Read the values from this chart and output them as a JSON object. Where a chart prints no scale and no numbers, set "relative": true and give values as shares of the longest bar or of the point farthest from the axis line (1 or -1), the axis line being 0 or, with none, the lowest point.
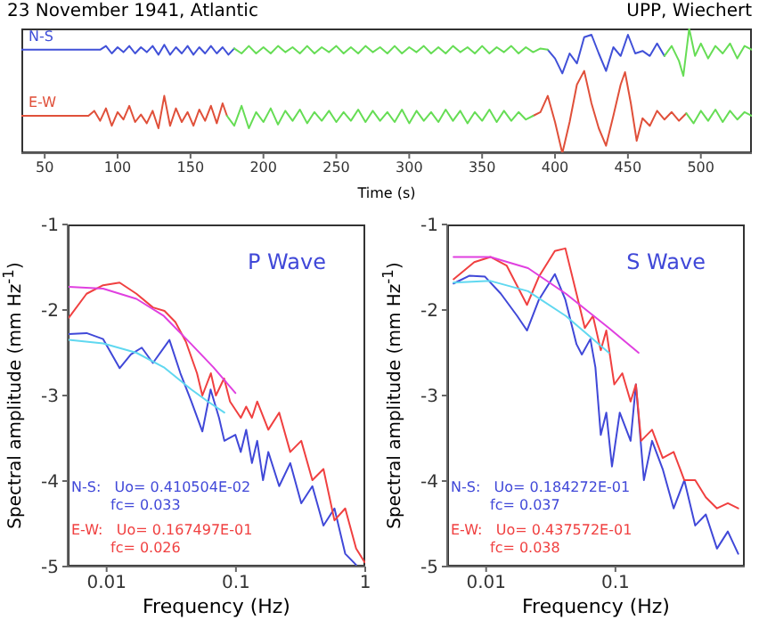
{
  "chart_data": [
    {
      "type": "line",
      "title": "23 November 1941, Atlantic",
      "subtitle": "UPP, Wiechert",
      "xlabel": "Time (s)",
      "relative": true,
      "xlim": [
        34,
        535
      ],
      "xticks": [
        50,
        100,
        150,
        200,
        250,
        300,
        350,
        400,
        450,
        500
      ],
      "legend": false,
      "series": [
        {
          "name": "N-S",
          "color": "#4050d8",
          "x": [
            34,
            88,
            92,
            96,
            100,
            104,
            108,
            112,
            116,
            120,
            124,
            128,
            132,
            136,
            140,
            144,
            148,
            152,
            156,
            160,
            164,
            168,
            172,
            176,
            180,
            300,
            395,
            400,
            405,
            410,
            415,
            420,
            425,
            430,
            435,
            440,
            445,
            450,
            455,
            460,
            465,
            470,
            475
          ],
          "values": [
            0.83,
            0.83,
            0.86,
            0.8,
            0.85,
            0.81,
            0.86,
            0.8,
            0.85,
            0.81,
            0.86,
            0.79,
            0.87,
            0.79,
            0.85,
            0.8,
            0.86,
            0.79,
            0.85,
            0.8,
            0.86,
            0.8,
            0.85,
            0.79,
            0.84,
            null,
            0.83,
            0.76,
            0.64,
            0.8,
            0.72,
            0.93,
            0.95,
            0.8,
            0.66,
            0.85,
            0.78,
            0.95,
            0.8,
            0.82,
            0.78,
            0.88,
            0.78
          ]
        },
        {
          "color": "#66dd55",
          "x": [
            180,
            185,
            190,
            195,
            200,
            205,
            210,
            215,
            220,
            225,
            230,
            235,
            240,
            245,
            250,
            255,
            260,
            265,
            270,
            275,
            280,
            285,
            290,
            295,
            300,
            305,
            310,
            315,
            320,
            325,
            330,
            335,
            340,
            345,
            350,
            355,
            360,
            365,
            370,
            375,
            380,
            385,
            390,
            395
          ],
          "values": [
            0.84,
            0.8,
            0.86,
            0.8,
            0.85,
            0.8,
            0.86,
            0.81,
            0.85,
            0.8,
            0.86,
            0.8,
            0.85,
            0.81,
            0.86,
            0.8,
            0.85,
            0.8,
            0.86,
            0.81,
            0.85,
            0.8,
            0.86,
            0.8,
            0.85,
            0.81,
            0.86,
            0.8,
            0.85,
            0.8,
            0.86,
            0.81,
            0.85,
            0.8,
            0.86,
            0.8,
            0.85,
            0.81,
            0.86,
            0.8,
            0.85,
            0.81,
            0.84,
            0.83
          ]
        },
        {
          "color": "#66dd55",
          "x": [
            475,
            480,
            485,
            488,
            492,
            496,
            500,
            505,
            510,
            515,
            520,
            525,
            530,
            535
          ],
          "values": [
            0.78,
            0.86,
            0.74,
            0.62,
            1.0,
            0.78,
            0.88,
            0.76,
            0.86,
            0.8,
            0.88,
            0.76,
            0.86,
            0.83
          ]
        },
        {
          "name": "E-W",
          "color": "#e0503a",
          "x": [
            34,
            80,
            84,
            88,
            92,
            96,
            100,
            104,
            108,
            112,
            116,
            120,
            124,
            128,
            132,
            136,
            140,
            144,
            148,
            152,
            156,
            160,
            164,
            168,
            172,
            175,
            300,
            385,
            390,
            395,
            400,
            405,
            410,
            415,
            420,
            425,
            430,
            435,
            440,
            445,
            448,
            452,
            456,
            460,
            465,
            470,
            475,
            480,
            485,
            490
          ],
          "values": [
            0.3,
            0.3,
            0.34,
            0.26,
            0.36,
            0.22,
            0.33,
            0.27,
            0.38,
            0.25,
            0.31,
            0.24,
            0.34,
            0.2,
            0.46,
            0.22,
            0.36,
            0.25,
            0.33,
            0.22,
            0.35,
            0.26,
            0.38,
            0.24,
            0.4,
            0.3,
            null,
            0.3,
            0.33,
            0.46,
            0.25,
            0.0,
            0.25,
            0.55,
            0.66,
            0.4,
            0.2,
            0.06,
            0.3,
            0.55,
            0.65,
            0.4,
            0.1,
            0.28,
            0.22,
            0.34,
            0.27,
            0.33,
            0.26,
            0.32
          ]
        },
        {
          "color": "#66dd55",
          "x": [
            175,
            180,
            185,
            190,
            195,
            200,
            205,
            210,
            215,
            220,
            225,
            230,
            235,
            240,
            245,
            250,
            255,
            260,
            265,
            270,
            275,
            280,
            285,
            290,
            295,
            300,
            305,
            310,
            315,
            320,
            325,
            330,
            335,
            340,
            345,
            350,
            355,
            360,
            365,
            370,
            375,
            380,
            385
          ],
          "values": [
            0.3,
            0.22,
            0.38,
            0.2,
            0.33,
            0.25,
            0.36,
            0.23,
            0.34,
            0.26,
            0.35,
            0.24,
            0.33,
            0.26,
            0.34,
            0.25,
            0.33,
            0.26,
            0.35,
            0.25,
            0.34,
            0.26,
            0.33,
            0.25,
            0.35,
            0.24,
            0.34,
            0.26,
            0.33,
            0.25,
            0.35,
            0.26,
            0.34,
            0.24,
            0.33,
            0.26,
            0.35,
            0.25,
            0.34,
            0.26,
            0.33,
            0.27,
            0.3
          ]
        },
        {
          "color": "#66dd55",
          "x": [
            490,
            495,
            500,
            505,
            510,
            515,
            520,
            525,
            530,
            535
          ],
          "values": [
            0.32,
            0.24,
            0.34,
            0.26,
            0.35,
            0.25,
            0.34,
            0.27,
            0.33,
            0.3
          ]
        }
      ]
    },
    {
      "type": "line",
      "title": "P Wave",
      "xlabel": "Frequency (Hz)",
      "ylabel": "Spectral amplitude (mm Hz$^{-1}$)",
      "log": "x",
      "xlim": [
        0.005,
        1
      ],
      "xticks": [
        0.01,
        0.1,
        1
      ],
      "ylim": [
        -5,
        -1
      ],
      "yticks": [
        -5,
        -4,
        -3,
        -2,
        -1
      ],
      "legend": false,
      "annotations": [
        "N-S:   Uo= 0.410504E-02",
        "fc= 0.033",
        "E-W:   Uo= 0.167497E-01",
        "fc= 0.026"
      ],
      "series": [
        {
          "color": "#4048d8",
          "x": [
            0.0051,
            0.007,
            0.0094,
            0.0126,
            0.0154,
            0.0187,
            0.0228,
            0.0306,
            0.0372,
            0.0452,
            0.055,
            0.0637,
            0.074,
            0.0814,
            0.099,
            0.109,
            0.12,
            0.133,
            0.146,
            0.162,
            0.178,
            0.216,
            0.263,
            0.32,
            0.39,
            0.475,
            0.578,
            0.7,
            0.85
          ],
          "values": [
            -2.28,
            -2.27,
            -2.34,
            -2.68,
            -2.52,
            -2.44,
            -2.62,
            -2.35,
            -2.74,
            -3.07,
            -3.42,
            -2.93,
            -3.26,
            -3.53,
            -3.46,
            -3.66,
            -3.4,
            -3.79,
            -3.53,
            -3.99,
            -3.66,
            -4.06,
            -3.79,
            -4.26,
            -4.06,
            -4.52,
            -4.32,
            -4.85,
            -4.98
          ]
        },
        {
          "color": "#f04040",
          "x": [
            0.0051,
            0.007,
            0.0094,
            0.0126,
            0.017,
            0.0228,
            0.028,
            0.034,
            0.041,
            0.05,
            0.055,
            0.064,
            0.07,
            0.081,
            0.09,
            0.109,
            0.12,
            0.133,
            0.146,
            0.178,
            0.216,
            0.263,
            0.32,
            0.39,
            0.475,
            0.578,
            0.7,
            0.85,
            0.99
          ],
          "values": [
            -2.09,
            -1.81,
            -1.71,
            -1.68,
            -1.81,
            -1.97,
            -2.01,
            -2.14,
            -2.37,
            -2.74,
            -3.0,
            -2.74,
            -3.0,
            -2.8,
            -3.07,
            -3.26,
            -3.13,
            -3.26,
            -3.07,
            -3.4,
            -3.2,
            -3.66,
            -3.53,
            -3.99,
            -3.86,
            -4.46,
            -4.32,
            -4.79,
            -4.95
          ]
        },
        {
          "color": "#e040e0",
          "x": [
            0.0051,
            0.0094,
            0.017,
            0.0277,
            0.0452,
            0.067,
            0.099
          ],
          "values": [
            -1.73,
            -1.75,
            -1.87,
            -2.07,
            -2.4,
            -2.67,
            -2.97
          ]
        },
        {
          "color": "#60d8f0",
          "x": [
            0.0051,
            0.0094,
            0.017,
            0.0277,
            0.0452,
            0.0607,
            0.0814
          ],
          "values": [
            -2.35,
            -2.39,
            -2.5,
            -2.67,
            -2.93,
            -3.07,
            -3.2
          ]
        }
      ]
    },
    {
      "type": "line",
      "title": "S Wave",
      "xlabel": "Frequency (Hz)",
      "ylabel": "Spectral amplitude (mm Hz$^{-1}$)",
      "log": "x",
      "xlim": [
        0.005,
        1
      ],
      "xticks": [
        0.01,
        0.1
      ],
      "ylim": [
        -5,
        -1
      ],
      "yticks": [
        -5,
        -4,
        -3,
        -2,
        -1
      ],
      "legend": false,
      "annotations": [
        "N-S:   Uo= 0.184272E-01",
        "fc= 0.037",
        "E-W:   Uo= 0.437572E-01",
        "fc= 0.038"
      ],
      "series": [
        {
          "color": "#4048d8",
          "x": [
            0.0056,
            0.0074,
            0.0098,
            0.013,
            0.0174,
            0.0207,
            0.0256,
            0.034,
            0.041,
            0.05,
            0.055,
            0.064,
            0.07,
            0.077,
            0.085,
            0.094,
            0.108,
            0.131,
            0.144,
            0.166,
            0.192,
            0.232,
            0.282,
            0.341,
            0.414,
            0.5,
            0.61,
            0.74,
            0.89
          ],
          "values": [
            -1.69,
            -1.6,
            -1.61,
            -1.81,
            -2.07,
            -2.24,
            -1.88,
            -1.58,
            -1.88,
            -2.4,
            -2.52,
            -2.34,
            -2.67,
            -3.46,
            -3.2,
            -3.83,
            -3.2,
            -3.53,
            -2.87,
            -3.99,
            -3.53,
            -3.86,
            -4.32,
            -3.99,
            -4.52,
            -4.39,
            -4.79,
            -4.59,
            -4.85
          ]
        },
        {
          "color": "#f04040",
          "x": [
            0.0056,
            0.0081,
            0.0108,
            0.0144,
            0.0207,
            0.0256,
            0.034,
            0.041,
            0.05,
            0.058,
            0.067,
            0.077,
            0.085,
            0.098,
            0.113,
            0.131,
            0.144,
            0.158,
            0.192,
            0.232,
            0.282,
            0.341,
            0.414,
            0.5,
            0.61,
            0.74,
            0.89
          ],
          "values": [
            -1.64,
            -1.44,
            -1.38,
            -1.48,
            -1.94,
            -1.61,
            -1.31,
            -1.28,
            -1.81,
            -2.21,
            -2.07,
            -2.47,
            -2.24,
            -2.87,
            -2.74,
            -3.07,
            -2.87,
            -3.53,
            -3.4,
            -3.73,
            -3.66,
            -3.99,
            -3.99,
            -4.19,
            -4.32,
            -4.26,
            -4.32
          ]
        },
        {
          "color": "#e040e0",
          "x": [
            0.0056,
            0.0108,
            0.0211,
            0.0414,
            0.089,
            0.151
          ],
          "values": [
            -1.38,
            -1.38,
            -1.51,
            -1.81,
            -2.21,
            -2.5
          ]
        },
        {
          "color": "#60d8f0",
          "x": [
            0.0056,
            0.0108,
            0.0211,
            0.0414,
            0.089
          ],
          "values": [
            -1.68,
            -1.66,
            -1.78,
            -2.07,
            -2.5
          ]
        }
      ]
    }
  ]
}
